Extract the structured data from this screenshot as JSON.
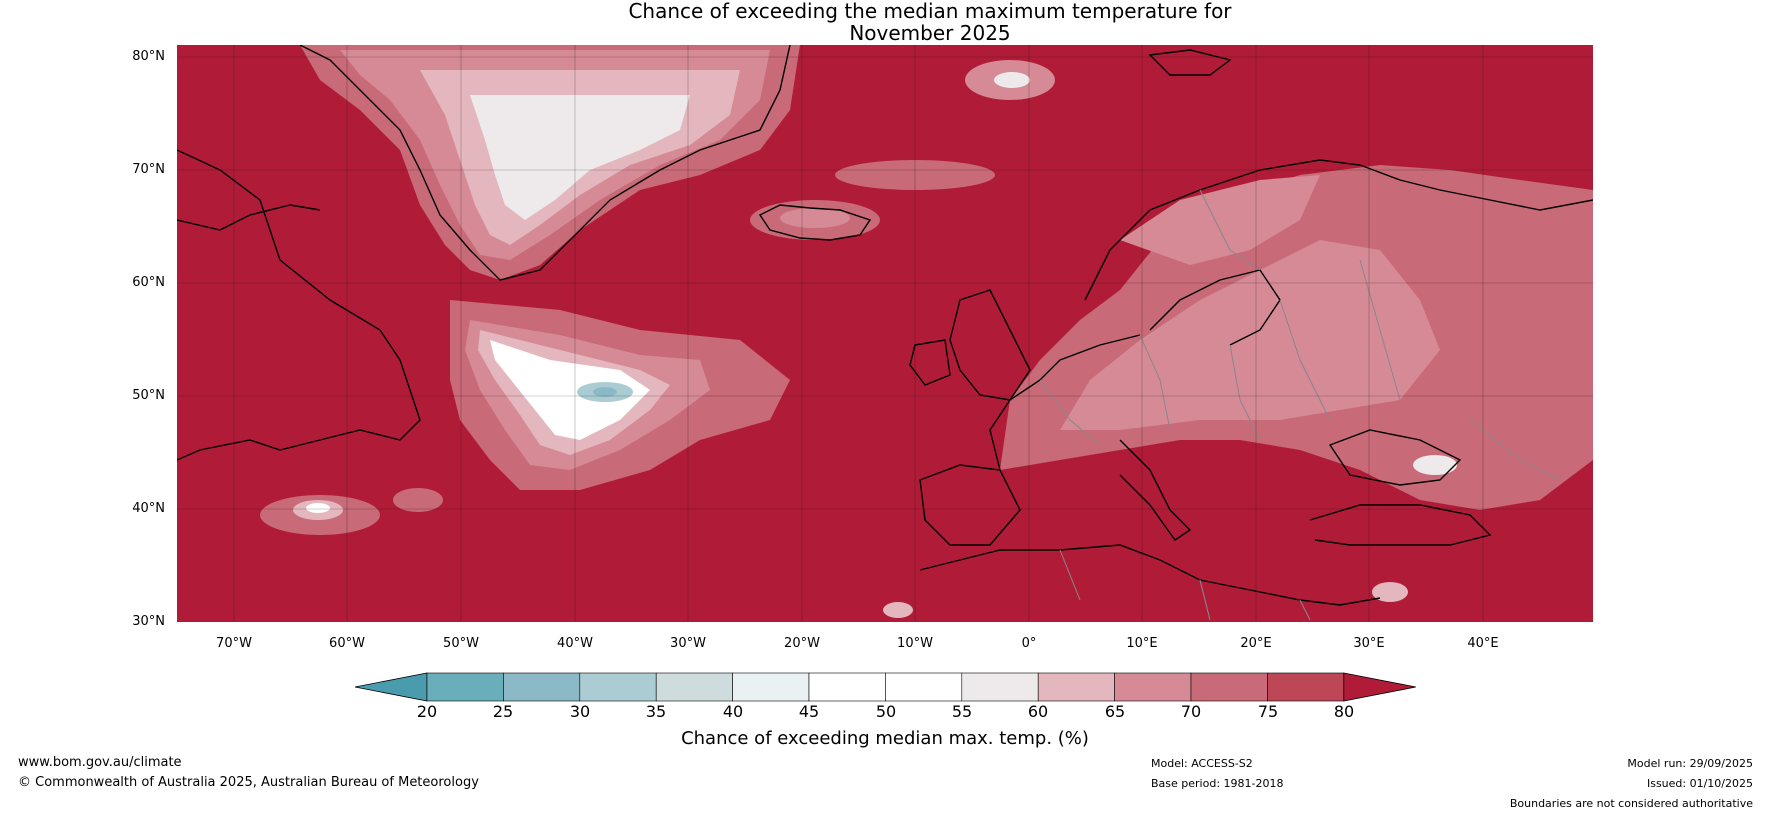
{
  "title": {
    "line1": "Chance of exceeding the median maximum temperature for",
    "line2": "November 2025"
  },
  "map": {
    "lat_labels": [
      "80°N",
      "70°N",
      "60°N",
      "50°N",
      "40°N",
      "30°N"
    ],
    "lon_labels": [
      "70°W",
      "60°W",
      "50°W",
      "40°W",
      "30°W",
      "20°W",
      "10°W",
      "0°",
      "10°E",
      "20°E",
      "30°E",
      "40°E"
    ],
    "background_color": "#b01c38",
    "land_outline_color": "#000000",
    "border_color": "#888888"
  },
  "colorbar": {
    "ticks": [
      "20",
      "25",
      "30",
      "35",
      "40",
      "45",
      "50",
      "55",
      "60",
      "65",
      "70",
      "75",
      "80"
    ],
    "colors": [
      "#4a9bae",
      "#6aaebc",
      "#8bbac6",
      "#aaccd2",
      "#cfdcde",
      "#e9f1f2",
      "#ffffff",
      "#ffffff",
      "#eeeaeb",
      "#e3b7bd",
      "#d58a96",
      "#c86a77",
      "#bd4657",
      "#b01c38"
    ],
    "label": "Chance of exceeding median max. temp. (%)"
  },
  "footer": {
    "website": "www.bom.gov.au/climate",
    "copyright": "© Commonwealth of Australia 2025, Australian Bureau of Meteorology",
    "model": "Model: ACCESS-S2",
    "base_period": "Base period: 1981-2018",
    "model_run": "Model run: 29/09/2025",
    "issued": "Issued: 01/10/2025",
    "disclaimer": "Boundaries are not considered authoritative"
  }
}
